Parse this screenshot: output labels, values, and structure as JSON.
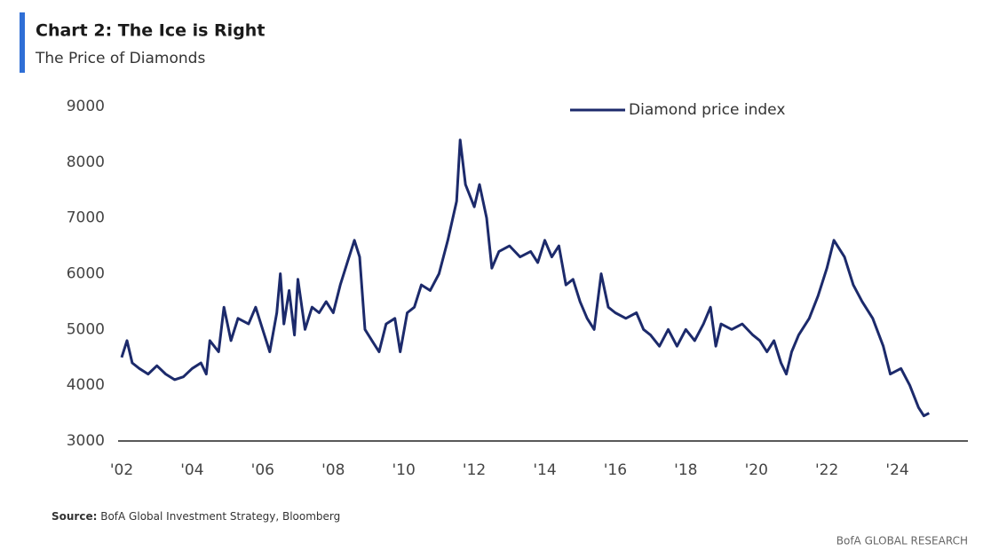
{
  "chart_data": {
    "type": "line",
    "title": "Chart 2: The Ice is Right",
    "subtitle": "The Price of Diamonds",
    "source_label": "Source:",
    "source": "BofA Global Investment Strategy, Bloomberg",
    "brand": "BofA GLOBAL RESEARCH",
    "legend_position": "top-right",
    "xlim": [
      2002,
      2026
    ],
    "xticks": [
      {
        "value": 2002,
        "label": "'02"
      },
      {
        "value": 2004,
        "label": "'04"
      },
      {
        "value": 2006,
        "label": "'06"
      },
      {
        "value": 2008,
        "label": "'08"
      },
      {
        "value": 2010,
        "label": "'10"
      },
      {
        "value": 2012,
        "label": "'12"
      },
      {
        "value": 2014,
        "label": "'14"
      },
      {
        "value": 2016,
        "label": "'16"
      },
      {
        "value": 2018,
        "label": "'18"
      },
      {
        "value": 2020,
        "label": "'20"
      },
      {
        "value": 2022,
        "label": "'22"
      },
      {
        "value": 2024,
        "label": "'24"
      }
    ],
    "ylim": [
      3000,
      9000
    ],
    "yticks": [
      3000,
      4000,
      5000,
      6000,
      7000,
      8000,
      9000
    ],
    "x": [
      2002.0,
      2002.15,
      2002.3,
      2002.5,
      2002.75,
      2003.0,
      2003.25,
      2003.5,
      2003.75,
      2004.0,
      2004.25,
      2004.4,
      2004.5,
      2004.75,
      2004.9,
      2005.1,
      2005.3,
      2005.6,
      2005.8,
      2006.0,
      2006.2,
      2006.4,
      2006.5,
      2006.6,
      2006.75,
      2006.9,
      2007.0,
      2007.2,
      2007.4,
      2007.6,
      2007.8,
      2008.0,
      2008.2,
      2008.4,
      2008.6,
      2008.75,
      2008.9,
      2009.1,
      2009.3,
      2009.5,
      2009.75,
      2009.9,
      2010.1,
      2010.3,
      2010.5,
      2010.75,
      2011.0,
      2011.25,
      2011.5,
      2011.6,
      2011.75,
      2012.0,
      2012.15,
      2012.35,
      2012.5,
      2012.7,
      2013.0,
      2013.3,
      2013.6,
      2013.8,
      2014.0,
      2014.2,
      2014.4,
      2014.6,
      2014.8,
      2015.0,
      2015.2,
      2015.4,
      2015.6,
      2015.8,
      2016.0,
      2016.3,
      2016.6,
      2016.8,
      2017.0,
      2017.25,
      2017.5,
      2017.75,
      2018.0,
      2018.25,
      2018.5,
      2018.7,
      2018.85,
      2019.0,
      2019.3,
      2019.6,
      2019.9,
      2020.1,
      2020.3,
      2020.5,
      2020.7,
      2020.85,
      2021.0,
      2021.2,
      2021.5,
      2021.75,
      2022.0,
      2022.2,
      2022.5,
      2022.75,
      2023.0,
      2023.3,
      2023.6,
      2023.8,
      2024.1,
      2024.35,
      2024.6,
      2024.75,
      2024.9
    ],
    "series": [
      {
        "name": "Diamond price index",
        "color": "#1c2a6b",
        "values": [
          4500,
          4800,
          4400,
          4300,
          4200,
          4350,
          4200,
          4100,
          4150,
          4300,
          4400,
          4200,
          4800,
          4600,
          5400,
          4800,
          5200,
          5100,
          5400,
          5000,
          4600,
          5300,
          6000,
          5100,
          5700,
          4900,
          5900,
          5000,
          5400,
          5300,
          5500,
          5300,
          5800,
          6200,
          6600,
          6300,
          5000,
          4800,
          4600,
          5100,
          5200,
          4600,
          5300,
          5400,
          5800,
          5700,
          6000,
          6600,
          7300,
          8400,
          7600,
          7200,
          7600,
          7000,
          6100,
          6400,
          6500,
          6300,
          6400,
          6200,
          6600,
          6300,
          6500,
          5800,
          5900,
          5500,
          5200,
          5000,
          6000,
          5400,
          5300,
          5200,
          5300,
          5000,
          4900,
          4700,
          5000,
          4700,
          5000,
          4800,
          5100,
          5400,
          4700,
          5100,
          5000,
          5100,
          4900,
          4800,
          4600,
          4800,
          4400,
          4200,
          4600,
          4900,
          5200,
          5600,
          6100,
          6600,
          6300,
          5800,
          5500,
          5200,
          4700,
          4200,
          4300,
          4000,
          3600,
          3450,
          3500
        ]
      }
    ]
  }
}
